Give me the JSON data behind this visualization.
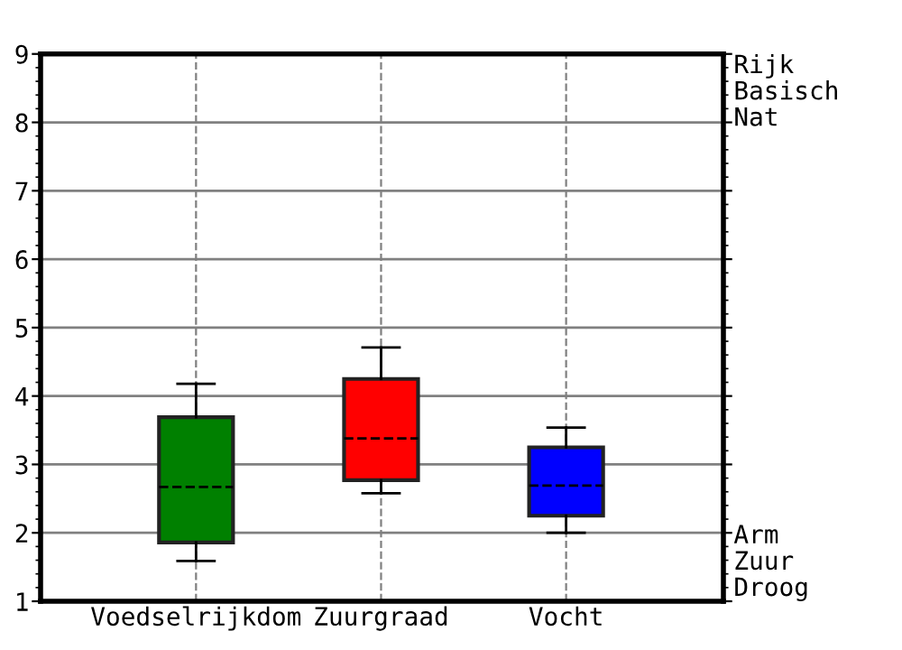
{
  "chart_data": {
    "type": "box",
    "categories": [
      "Voedselrijkdom",
      "Zuurgraad",
      "Vocht"
    ],
    "boxes": [
      {
        "low": 1.59,
        "q1": 1.86,
        "median": 2.67,
        "q3": 3.69,
        "high": 4.18
      },
      {
        "low": 2.58,
        "q1": 2.77,
        "median": 3.38,
        "q3": 4.25,
        "high": 4.71
      },
      {
        "low": 2.0,
        "q1": 2.25,
        "median": 2.69,
        "q3": 3.25,
        "high": 3.54
      }
    ],
    "colors": [
      "#008000",
      "#ff0000",
      "#0000ff"
    ],
    "ylim": [
      1,
      9
    ],
    "yticks": [
      1,
      2,
      3,
      4,
      5,
      6,
      7,
      8,
      9
    ],
    "grid": true,
    "annotations": [
      "Rijk\nBasisch\nNat",
      "Arm\nZuur\nDroog"
    ]
  }
}
